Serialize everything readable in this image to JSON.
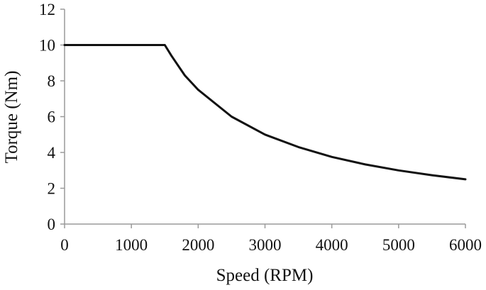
{
  "chart_data": {
    "type": "line",
    "title": "",
    "xlabel": "Speed (RPM)",
    "ylabel": "Torque (Nm)",
    "xlim": [
      0,
      6000
    ],
    "ylim": [
      0,
      12
    ],
    "xticks": [
      0,
      1000,
      2000,
      3000,
      4000,
      5000,
      6000
    ],
    "yticks": [
      0,
      2,
      4,
      6,
      8,
      10,
      12
    ],
    "grid": false,
    "legend": "none",
    "series": [
      {
        "color": "#111111",
        "x": [
          0,
          500,
          1000,
          1400,
          1500,
          1600,
          1800,
          2000,
          2500,
          3000,
          3500,
          4000,
          4500,
          5000,
          5500,
          6000
        ],
        "y": [
          10,
          10,
          10,
          10,
          10,
          9.4,
          8.3,
          7.5,
          6.0,
          5.0,
          4.3,
          3.75,
          3.33,
          3.0,
          2.73,
          2.5
        ]
      }
    ]
  }
}
